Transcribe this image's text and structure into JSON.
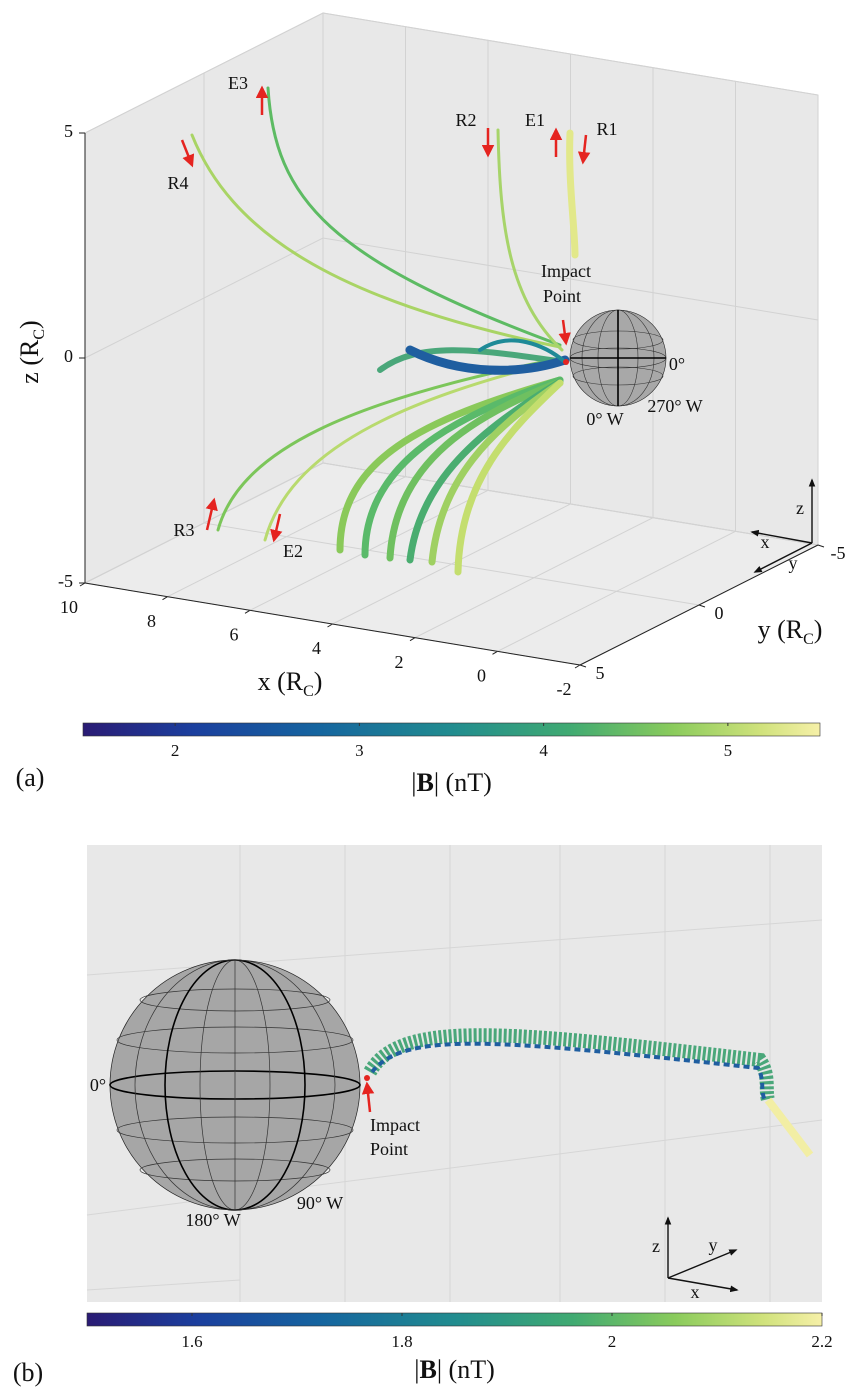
{
  "chart_data": [
    {
      "type": "3d-trajectory",
      "panel": "(a)",
      "xlabel": [
        "x (R",
        "C",
        ")"
      ],
      "ylabel": [
        "y (R",
        "C",
        ")"
      ],
      "zlabel": [
        "z (R",
        "C",
        ")"
      ],
      "xlim": [
        10,
        -2
      ],
      "xticks": [
        10,
        8,
        6,
        4,
        2,
        0,
        -2
      ],
      "ylim": [
        5,
        -5
      ],
      "yticks": [
        -5,
        0,
        5
      ],
      "zlim": [
        -5,
        5
      ],
      "zticks": [
        -5,
        0,
        5
      ],
      "annotations": [
        "E3",
        "R4",
        "R2",
        "E1",
        "R1",
        "R3",
        "E2"
      ],
      "impact_label": [
        "Impact",
        "Point"
      ],
      "sphere_labels": [
        "0°",
        "270° W",
        "0° W"
      ],
      "triad": [
        "z",
        "x",
        "y"
      ],
      "colorbar": {
        "label": [
          "|",
          "B",
          "| (nT)"
        ],
        "lim": [
          1.5,
          5.5
        ],
        "ticks": [
          2,
          3,
          4,
          5
        ]
      }
    },
    {
      "type": "3d-trajectory",
      "panel": "(b)",
      "impact_label": [
        "Impact",
        "Point"
      ],
      "sphere_labels": [
        "0°",
        "180° W",
        "90° W"
      ],
      "triad": [
        "z",
        "y",
        "x"
      ],
      "colorbar": {
        "label": [
          "|",
          "B",
          "| (nT)"
        ],
        "lim": [
          1.5,
          2.2
        ],
        "ticks": [
          1.6,
          1.8,
          2,
          2.2
        ]
      }
    }
  ]
}
